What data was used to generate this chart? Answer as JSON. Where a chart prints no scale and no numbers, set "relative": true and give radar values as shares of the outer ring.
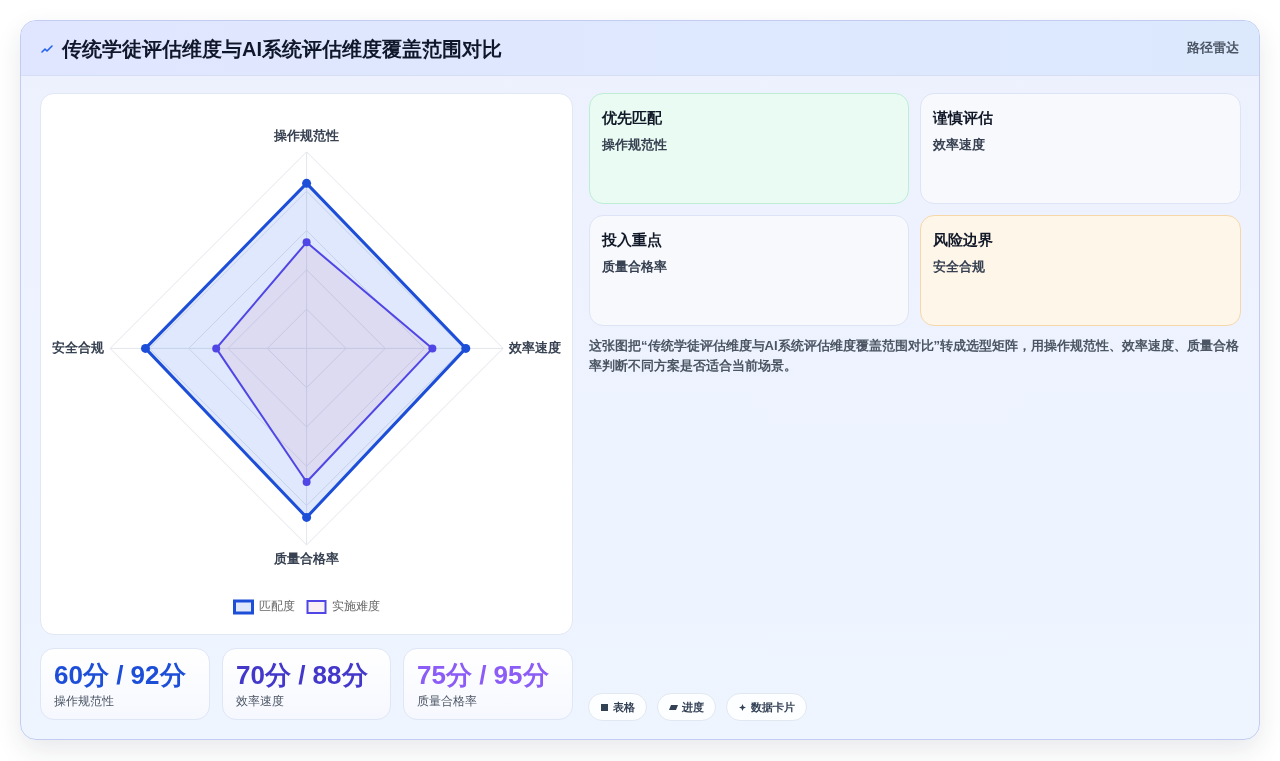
{
  "chart_data": [
    {
      "type": "other",
      "title": "传统学徒评估维度与AI系统评估维度覆盖范围对比",
      "subtitle": "路径雷达"
    },
    {
      "type": "radar",
      "categories": [
        "操作规范性",
        "效率速度",
        "质量合格率",
        "安全合规"
      ],
      "relative": true,
      "grid": true,
      "legend": "bottom",
      "marker": "circle",
      "series": [
        {
          "name": "匹配度",
          "color": "#1d4ed8",
          "values": [
            0.84,
            0.81,
            0.86,
            0.82
          ]
        },
        {
          "name": "实施难度",
          "color": "#4f46e5",
          "values": [
            0.54,
            0.64,
            0.68,
            0.46
          ]
        }
      ]
    },
    {
      "type": "other",
      "title": "60分 / 92分",
      "subtitle": "操作规范性"
    },
    {
      "type": "other",
      "title": "70分 / 88分",
      "subtitle": "效率速度"
    },
    {
      "type": "other",
      "title": "75分 / 95分",
      "subtitle": "质量合格率"
    },
    {
      "type": "other",
      "title": "优先匹配",
      "subtitle": "操作规范性"
    },
    {
      "type": "other",
      "title": "谨慎评估",
      "subtitle": "效率速度"
    },
    {
      "type": "other",
      "title": "投入重点",
      "subtitle": "质量合格率"
    },
    {
      "type": "other",
      "title": "风险边界",
      "subtitle": "安全合规"
    },
    {
      "type": "other",
      "annotations": [
        "这张图把“传统学徒评估维度与AI系统评估维度覆盖范围对比”转成选型矩阵，用操作规范性、效率速度、质量合格率判断不同方案是否适合当前场景。"
      ]
    },
    {
      "type": "other",
      "annotations": [
        "表格",
        "进度",
        "数据卡片"
      ]
    }
  ]
}
